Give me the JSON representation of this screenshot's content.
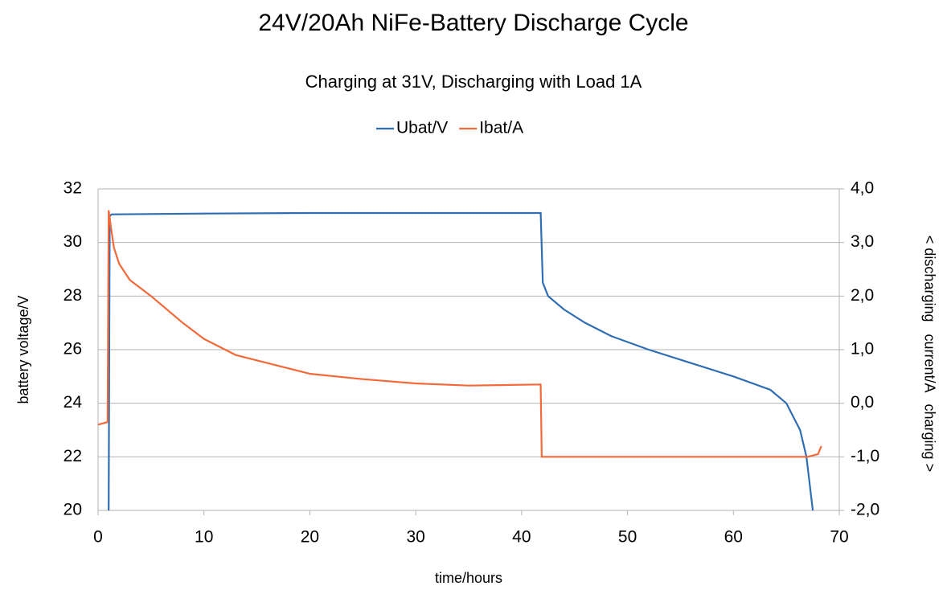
{
  "chart_data": {
    "type": "line",
    "title": "24V/20Ah NiFe-Battery Discharge Cycle",
    "subtitle": "Charging at 31V, Discharging with Load 1A",
    "xlabel": "time/hours",
    "ylabel": "battery voltage/V",
    "y2label": "< discharging   current/A   charging >",
    "xlim": [
      0,
      70
    ],
    "xticks": [
      0,
      10,
      20,
      30,
      40,
      50,
      60,
      70
    ],
    "ylim": [
      20,
      32
    ],
    "yticks": [
      20,
      22,
      24,
      26,
      28,
      30,
      32
    ],
    "y2lim": [
      -2,
      4
    ],
    "y2ticks": [
      {
        "value": -2,
        "label": "-2,0"
      },
      {
        "value": -1,
        "label": "-1,0"
      },
      {
        "value": 0,
        "label": "0,0"
      },
      {
        "value": 1,
        "label": "1,0"
      },
      {
        "value": 2,
        "label": "2,0"
      },
      {
        "value": 3,
        "label": "3,0"
      },
      {
        "value": 4,
        "label": "4,0"
      }
    ],
    "grid": true,
    "legend": "top",
    "series": [
      {
        "name": "Ubat/V",
        "color": "#2f6db5",
        "x": [
          1.0,
          1.1,
          1.3,
          10,
          20,
          30,
          41.8,
          42.0,
          42.5,
          44,
          46,
          48.5,
          52,
          56,
          60,
          63.5,
          65,
          66.3,
          66.9,
          67.2,
          67.5
        ],
        "values": [
          20,
          31.0,
          31.05,
          31.08,
          31.1,
          31.1,
          31.1,
          28.5,
          28.0,
          27.5,
          27.0,
          26.5,
          26.0,
          25.5,
          25.0,
          24.5,
          24.0,
          23.0,
          22.0,
          21.0,
          20.0
        ]
      },
      {
        "name": "Ibat/A",
        "color": "#f26a3a",
        "axis": "y2",
        "x": [
          0,
          0.9,
          1.0,
          1.2,
          1.5,
          2,
          3,
          5,
          8,
          10,
          13,
          16,
          20,
          25,
          30,
          35,
          41.8,
          41.9,
          50,
          60,
          67,
          68,
          68.3
        ],
        "values": [
          -0.4,
          -0.35,
          3.6,
          3.3,
          2.9,
          2.6,
          2.3,
          2.0,
          1.5,
          1.2,
          0.9,
          0.75,
          0.55,
          0.45,
          0.37,
          0.33,
          0.35,
          -1.0,
          -1.0,
          -1.0,
          -1.0,
          -0.95,
          -0.8
        ]
      }
    ]
  }
}
